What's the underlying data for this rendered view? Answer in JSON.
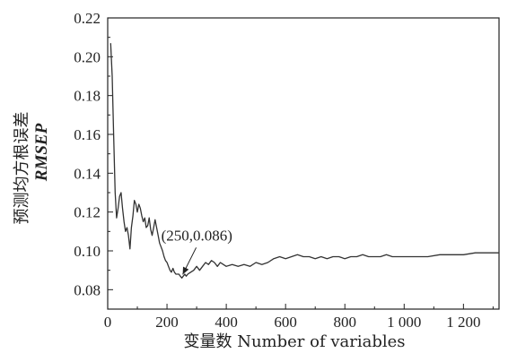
{
  "chart_data": {
    "type": "line",
    "xlabel": "变量数 Number of variables",
    "ylabel_cn": "预测均方根误差",
    "ylabel_en": "RMSEP",
    "xlim": [
      0,
      1320
    ],
    "ylim": [
      0.07,
      0.22
    ],
    "x_ticks": [
      {
        "value": 0,
        "label": "0"
      },
      {
        "value": 200,
        "label": "200"
      },
      {
        "value": 400,
        "label": "400"
      },
      {
        "value": 600,
        "label": "600"
      },
      {
        "value": 800,
        "label": "800"
      },
      {
        "value": 1000,
        "label": "1 000"
      },
      {
        "value": 1200,
        "label": "1 200"
      }
    ],
    "y_ticks": [
      {
        "value": 0.08,
        "label": "0.08"
      },
      {
        "value": 0.1,
        "label": "0.10"
      },
      {
        "value": 0.12,
        "label": "0.12"
      },
      {
        "value": 0.14,
        "label": "0.14"
      },
      {
        "value": 0.16,
        "label": "0.16"
      },
      {
        "value": 0.18,
        "label": "0.18"
      },
      {
        "value": 0.2,
        "label": "0.20"
      },
      {
        "value": 0.22,
        "label": "0.22"
      }
    ],
    "grid": false,
    "series": [
      {
        "color": "#333333",
        "points": [
          [
            10,
            0.207
          ],
          [
            15,
            0.19
          ],
          [
            20,
            0.16
          ],
          [
            25,
            0.13
          ],
          [
            30,
            0.117
          ],
          [
            35,
            0.122
          ],
          [
            40,
            0.128
          ],
          [
            45,
            0.13
          ],
          [
            50,
            0.122
          ],
          [
            55,
            0.115
          ],
          [
            60,
            0.11
          ],
          [
            65,
            0.112
          ],
          [
            70,
            0.108
          ],
          [
            75,
            0.101
          ],
          [
            80,
            0.112
          ],
          [
            85,
            0.118
          ],
          [
            90,
            0.126
          ],
          [
            95,
            0.124
          ],
          [
            100,
            0.12
          ],
          [
            105,
            0.124
          ],
          [
            110,
            0.122
          ],
          [
            115,
            0.118
          ],
          [
            120,
            0.115
          ],
          [
            125,
            0.117
          ],
          [
            130,
            0.112
          ],
          [
            135,
            0.113
          ],
          [
            140,
            0.117
          ],
          [
            145,
            0.111
          ],
          [
            150,
            0.108
          ],
          [
            155,
            0.112
          ],
          [
            160,
            0.116
          ],
          [
            165,
            0.112
          ],
          [
            170,
            0.108
          ],
          [
            175,
            0.104
          ],
          [
            180,
            0.102
          ],
          [
            185,
            0.1
          ],
          [
            190,
            0.097
          ],
          [
            195,
            0.095
          ],
          [
            200,
            0.094
          ],
          [
            205,
            0.092
          ],
          [
            210,
            0.09
          ],
          [
            215,
            0.089
          ],
          [
            220,
            0.091
          ],
          [
            225,
            0.089
          ],
          [
            230,
            0.088
          ],
          [
            240,
            0.088
          ],
          [
            245,
            0.087
          ],
          [
            250,
            0.086
          ],
          [
            255,
            0.087
          ],
          [
            260,
            0.088
          ],
          [
            265,
            0.087
          ],
          [
            270,
            0.088
          ],
          [
            280,
            0.089
          ],
          [
            290,
            0.09
          ],
          [
            300,
            0.092
          ],
          [
            310,
            0.09
          ],
          [
            320,
            0.092
          ],
          [
            330,
            0.094
          ],
          [
            340,
            0.093
          ],
          [
            350,
            0.095
          ],
          [
            360,
            0.094
          ],
          [
            370,
            0.092
          ],
          [
            380,
            0.094
          ],
          [
            390,
            0.093
          ],
          [
            400,
            0.092
          ],
          [
            420,
            0.093
          ],
          [
            440,
            0.092
          ],
          [
            460,
            0.093
          ],
          [
            480,
            0.092
          ],
          [
            500,
            0.094
          ],
          [
            520,
            0.093
          ],
          [
            540,
            0.094
          ],
          [
            560,
            0.096
          ],
          [
            580,
            0.097
          ],
          [
            600,
            0.096
          ],
          [
            620,
            0.097
          ],
          [
            640,
            0.098
          ],
          [
            660,
            0.097
          ],
          [
            680,
            0.097
          ],
          [
            700,
            0.096
          ],
          [
            720,
            0.097
          ],
          [
            740,
            0.096
          ],
          [
            760,
            0.097
          ],
          [
            780,
            0.097
          ],
          [
            800,
            0.096
          ],
          [
            820,
            0.097
          ],
          [
            840,
            0.097
          ],
          [
            860,
            0.098
          ],
          [
            880,
            0.097
          ],
          [
            900,
            0.097
          ],
          [
            920,
            0.097
          ],
          [
            940,
            0.098
          ],
          [
            960,
            0.097
          ],
          [
            980,
            0.097
          ],
          [
            1000,
            0.097
          ],
          [
            1040,
            0.097
          ],
          [
            1080,
            0.097
          ],
          [
            1120,
            0.098
          ],
          [
            1160,
            0.098
          ],
          [
            1200,
            0.098
          ],
          [
            1240,
            0.099
          ],
          [
            1280,
            0.099
          ],
          [
            1320,
            0.099
          ]
        ]
      }
    ],
    "annotation": {
      "text": "(250,0.086)",
      "x": 250,
      "y": 0.086
    }
  }
}
